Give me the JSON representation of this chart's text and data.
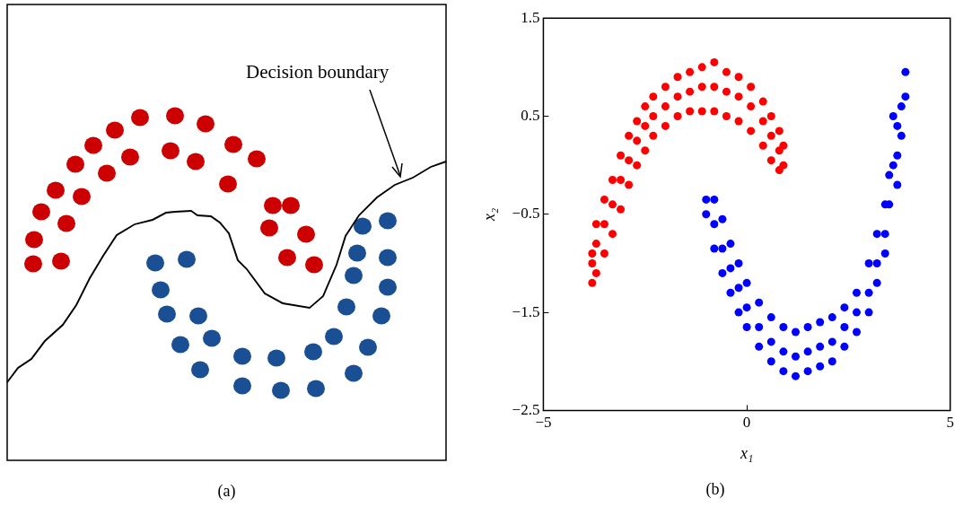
{
  "chart_data": [
    {
      "type": "other",
      "title": "(a)",
      "annotations": [
        "Decision boundary"
      ]
    },
    {
      "type": "scatter",
      "title": "(b)",
      "xlabel": "x₁",
      "ylabel": "x₂",
      "marker": "circle",
      "grid": false,
      "legend": false,
      "xlim": [
        -5,
        5
      ],
      "ylim": [
        -2.5,
        1.5
      ],
      "xticks": [
        -5,
        0,
        5
      ],
      "yticks": [
        -2.5,
        -1.5,
        -0.5,
        0.5,
        1.5
      ],
      "series": [
        {
          "color": "#ff0000",
          "x": [
            -3.8,
            -3.8,
            -3.8,
            -3.7,
            -3.7,
            -3.7,
            -3.5,
            -3.5,
            -3.5,
            -3.3,
            -3.3,
            -3.3,
            -3.1,
            -3.1,
            -3.1,
            -2.9,
            -2.9,
            -2.9,
            -2.7,
            -2.7,
            -2.7,
            -2.5,
            -2.5,
            -2.5,
            -2.3,
            -2.3,
            -2.3,
            -2,
            -2,
            -2,
            -1.7,
            -1.7,
            -1.7,
            -1.4,
            -1.4,
            -1.4,
            -1.1,
            -1.1,
            -1.1,
            -0.8,
            -0.8,
            -0.8,
            -0.5,
            -0.5,
            -0.5,
            -0.2,
            -0.2,
            -0.2,
            0.1,
            0.1,
            0.1,
            0.4,
            0.4,
            0.4,
            0.6,
            0.6,
            0.6,
            0.8,
            0.8,
            0.8,
            0.9,
            0.9
          ],
          "values": [
            -1.2,
            -1,
            -0.9,
            -1.1,
            -0.8,
            -0.6,
            -0.9,
            -0.6,
            -0.35,
            -0.7,
            -0.4,
            -0.15,
            -0.45,
            -0.15,
            0.1,
            -0.2,
            0.05,
            0.3,
            0,
            0.25,
            0.45,
            0.15,
            0.4,
            0.6,
            0.3,
            0.5,
            0.7,
            0.4,
            0.6,
            0.8,
            0.5,
            0.7,
            0.9,
            0.55,
            0.75,
            0.95,
            0.55,
            0.8,
            1,
            0.55,
            0.8,
            1.05,
            0.5,
            0.75,
            0.95,
            0.45,
            0.7,
            0.9,
            0.35,
            0.6,
            0.8,
            0.2,
            0.45,
            0.65,
            0.05,
            0.3,
            0.5,
            -0.05,
            0.15,
            0.35,
            0,
            0.2
          ]
        },
        {
          "color": "#0000ff",
          "x": [
            -1,
            -1,
            -0.8,
            -0.8,
            -0.8,
            -0.6,
            -0.6,
            -0.6,
            -0.4,
            -0.4,
            -0.4,
            -0.2,
            -0.2,
            -0.2,
            0,
            0,
            0,
            0.3,
            0.3,
            0.3,
            0.6,
            0.6,
            0.6,
            0.9,
            0.9,
            0.9,
            1.2,
            1.2,
            1.2,
            1.5,
            1.5,
            1.5,
            1.8,
            1.8,
            1.8,
            2.1,
            2.1,
            2.1,
            2.4,
            2.4,
            2.4,
            2.7,
            2.7,
            2.7,
            3,
            3,
            3,
            3.2,
            3.2,
            3.2,
            3.4,
            3.4,
            3.4,
            3.5,
            3.5,
            3.6,
            3.6,
            3.7,
            3.7,
            3.7,
            3.8,
            3.8,
            3.9,
            3.9
          ],
          "values": [
            -0.35,
            -0.5,
            -0.35,
            -0.6,
            -0.85,
            -0.55,
            -0.85,
            -1.1,
            -0.8,
            -1.05,
            -1.3,
            -1,
            -1.25,
            -1.5,
            -1.2,
            -1.45,
            -1.65,
            -1.4,
            -1.65,
            -1.85,
            -1.55,
            -1.8,
            -2,
            -1.65,
            -1.9,
            -2.1,
            -1.7,
            -1.95,
            -2.15,
            -1.65,
            -1.9,
            -2.1,
            -1.6,
            -1.85,
            -2.05,
            -1.55,
            -1.8,
            -2,
            -1.45,
            -1.65,
            -1.85,
            -1.3,
            -1.5,
            -1.7,
            -1,
            -1.3,
            -1.5,
            -0.7,
            -1,
            -1.2,
            -0.4,
            -0.7,
            -0.9,
            -0.1,
            -0.4,
            0.5,
            0,
            0.1,
            -0.2,
            0.4,
            0.3,
            0.6,
            0.7,
            0.95
          ]
        }
      ]
    }
  ]
}
